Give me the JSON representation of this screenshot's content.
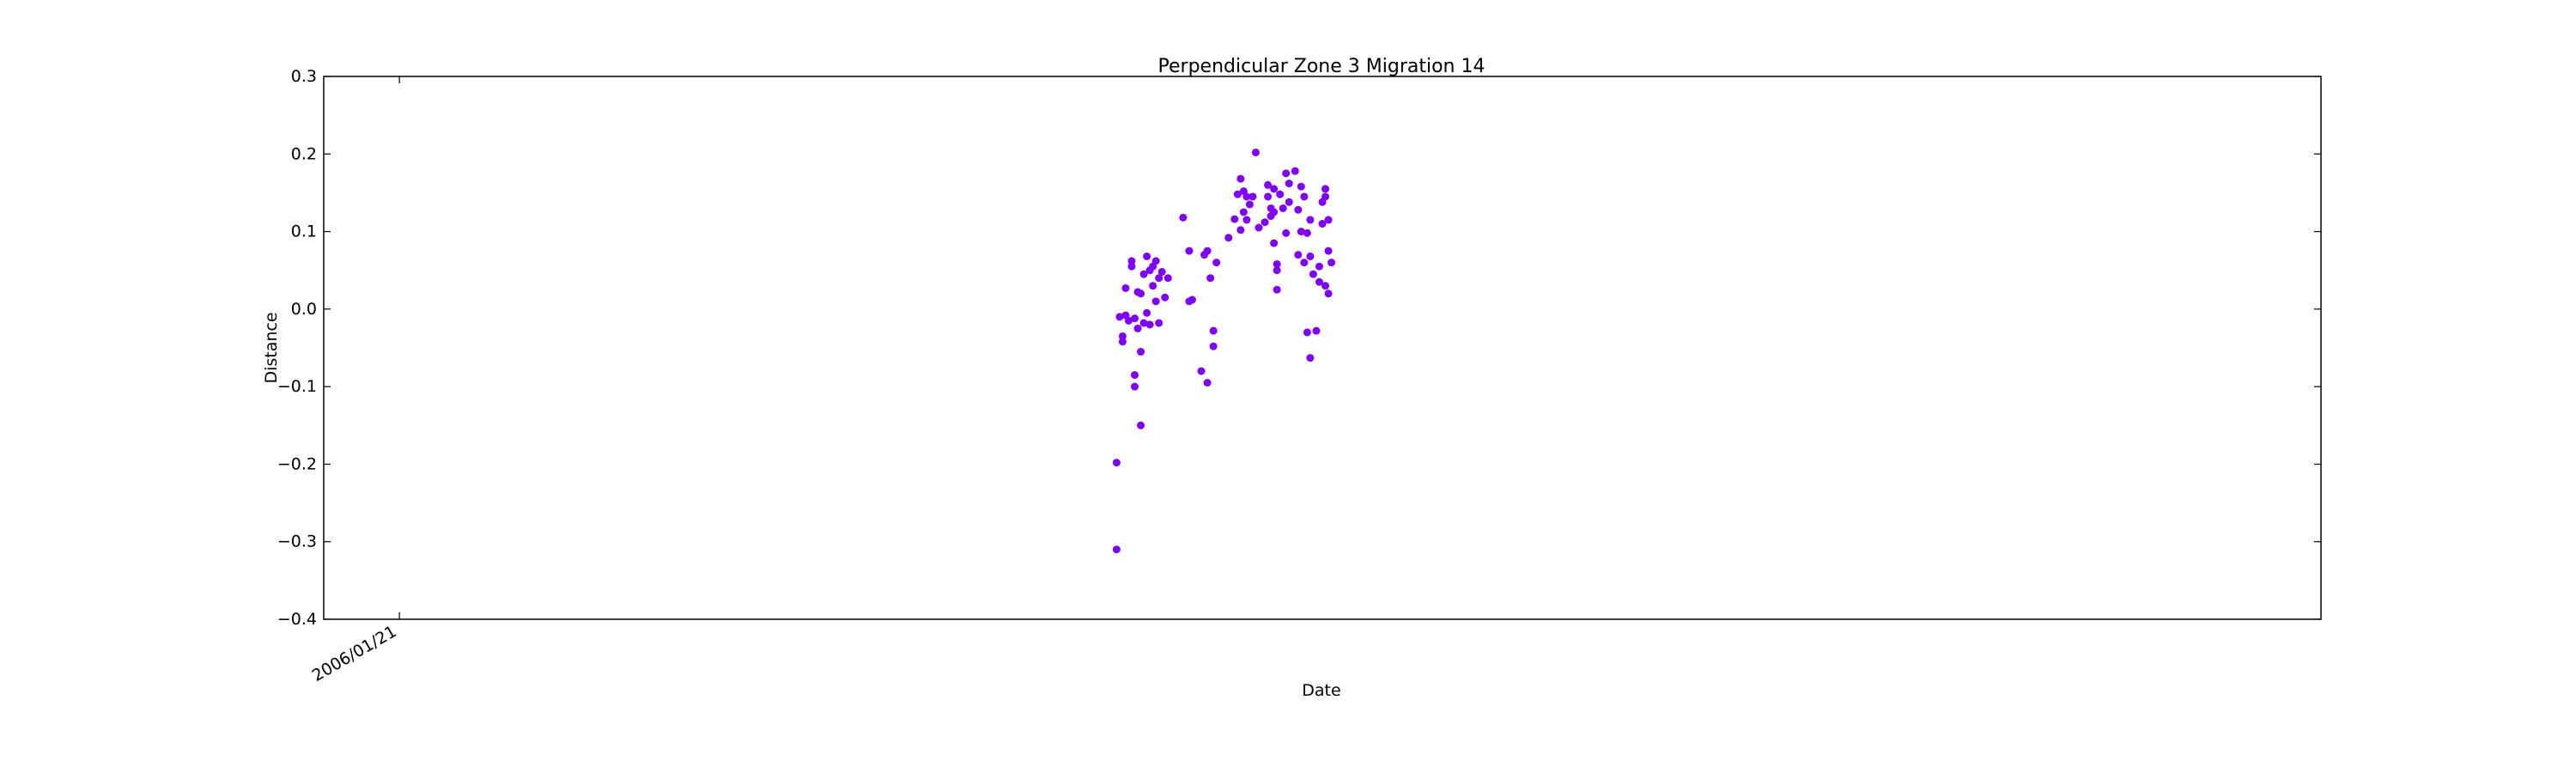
{
  "chart_data": {
    "type": "scatter",
    "title": "Perpendicular Zone 3 Migration 14",
    "xlabel": "Date",
    "ylabel": "Distance",
    "ylim": [
      -0.4,
      0.3
    ],
    "yticks": [
      "0.3",
      "0.2",
      "0.1",
      "0.0",
      "−0.1",
      "−0.2",
      "−0.3",
      "−0.4"
    ],
    "xtick_label": "2006/01/21",
    "xlim_dates": [
      "2005-12-27",
      "2007-10-18"
    ],
    "xtick_date": "2006-01-21",
    "marker_color": "#7f00ff",
    "grid": false,
    "points": [
      [
        "2006-09-15",
        -0.31
      ],
      [
        "2006-09-15",
        -0.198
      ],
      [
        "2006-09-16",
        -0.01
      ],
      [
        "2006-09-17",
        -0.035
      ],
      [
        "2006-09-17",
        -0.042
      ],
      [
        "2006-09-18",
        -0.008
      ],
      [
        "2006-09-18",
        0.027
      ],
      [
        "2006-09-19",
        -0.015
      ],
      [
        "2006-09-20",
        0.055
      ],
      [
        "2006-09-20",
        0.062
      ],
      [
        "2006-09-21",
        -0.085
      ],
      [
        "2006-09-21",
        -0.1
      ],
      [
        "2006-09-21",
        -0.012
      ],
      [
        "2006-09-22",
        0.022
      ],
      [
        "2006-09-22",
        -0.025
      ],
      [
        "2006-09-23",
        -0.055
      ],
      [
        "2006-09-23",
        0.02
      ],
      [
        "2006-09-23",
        -0.15
      ],
      [
        "2006-09-24",
        0.045
      ],
      [
        "2006-09-24",
        -0.018
      ],
      [
        "2006-09-25",
        -0.005
      ],
      [
        "2006-09-25",
        0.068
      ],
      [
        "2006-09-26",
        0.05
      ],
      [
        "2006-09-26",
        -0.02
      ],
      [
        "2006-09-27",
        0.055
      ],
      [
        "2006-09-27",
        0.03
      ],
      [
        "2006-09-28",
        0.062
      ],
      [
        "2006-09-28",
        0.01
      ],
      [
        "2006-09-29",
        0.04
      ],
      [
        "2006-09-29",
        -0.018
      ],
      [
        "2006-09-30",
        0.048
      ],
      [
        "2006-10-01",
        0.015
      ],
      [
        "2006-10-02",
        0.04
      ],
      [
        "2006-10-07",
        0.118
      ],
      [
        "2006-10-09",
        0.075
      ],
      [
        "2006-10-09",
        0.01
      ],
      [
        "2006-10-10",
        0.012
      ],
      [
        "2006-10-13",
        -0.08
      ],
      [
        "2006-10-14",
        0.07
      ],
      [
        "2006-10-15",
        0.075
      ],
      [
        "2006-10-15",
        -0.095
      ],
      [
        "2006-10-16",
        0.04
      ],
      [
        "2006-10-17",
        -0.028
      ],
      [
        "2006-10-17",
        -0.048
      ],
      [
        "2006-10-18",
        0.06
      ],
      [
        "2006-10-22",
        0.092
      ],
      [
        "2006-10-24",
        0.116
      ],
      [
        "2006-10-25",
        0.148
      ],
      [
        "2006-10-26",
        0.168
      ],
      [
        "2006-10-26",
        0.102
      ],
      [
        "2006-10-27",
        0.152
      ],
      [
        "2006-10-27",
        0.125
      ],
      [
        "2006-10-28",
        0.145
      ],
      [
        "2006-10-28",
        0.115
      ],
      [
        "2006-10-29",
        0.135
      ],
      [
        "2006-10-30",
        0.145
      ],
      [
        "2006-10-31",
        0.202
      ],
      [
        "2006-11-01",
        0.105
      ],
      [
        "2006-11-03",
        0.112
      ],
      [
        "2006-11-04",
        0.16
      ],
      [
        "2006-11-04",
        0.145
      ],
      [
        "2006-11-05",
        0.13
      ],
      [
        "2006-11-05",
        0.12
      ],
      [
        "2006-11-06",
        0.155
      ],
      [
        "2006-11-06",
        0.125
      ],
      [
        "2006-11-06",
        0.085
      ],
      [
        "2006-11-07",
        0.058
      ],
      [
        "2006-11-07",
        0.05
      ],
      [
        "2006-11-07",
        0.025
      ],
      [
        "2006-11-08",
        0.148
      ],
      [
        "2006-11-09",
        0.13
      ],
      [
        "2006-11-10",
        0.175
      ],
      [
        "2006-11-10",
        0.098
      ],
      [
        "2006-11-11",
        0.162
      ],
      [
        "2006-11-11",
        0.138
      ],
      [
        "2006-11-13",
        0.178
      ],
      [
        "2006-11-14",
        0.128
      ],
      [
        "2006-11-14",
        0.07
      ],
      [
        "2006-11-15",
        0.158
      ],
      [
        "2006-11-15",
        0.1
      ],
      [
        "2006-11-16",
        0.145
      ],
      [
        "2006-11-16",
        0.06
      ],
      [
        "2006-11-17",
        0.098
      ],
      [
        "2006-11-17",
        -0.03
      ],
      [
        "2006-11-18",
        0.115
      ],
      [
        "2006-11-18",
        0.068
      ],
      [
        "2006-11-18",
        -0.063
      ],
      [
        "2006-11-19",
        0.045
      ],
      [
        "2006-11-20",
        -0.028
      ],
      [
        "2006-11-21",
        0.035
      ],
      [
        "2006-11-21",
        0.055
      ],
      [
        "2006-11-22",
        0.138
      ],
      [
        "2006-11-22",
        0.11
      ],
      [
        "2006-11-23",
        0.155
      ],
      [
        "2006-11-23",
        0.145
      ],
      [
        "2006-11-23",
        0.03
      ],
      [
        "2006-11-24",
        0.115
      ],
      [
        "2006-11-24",
        0.075
      ],
      [
        "2006-11-24",
        0.02
      ],
      [
        "2006-11-25",
        0.06
      ]
    ]
  }
}
